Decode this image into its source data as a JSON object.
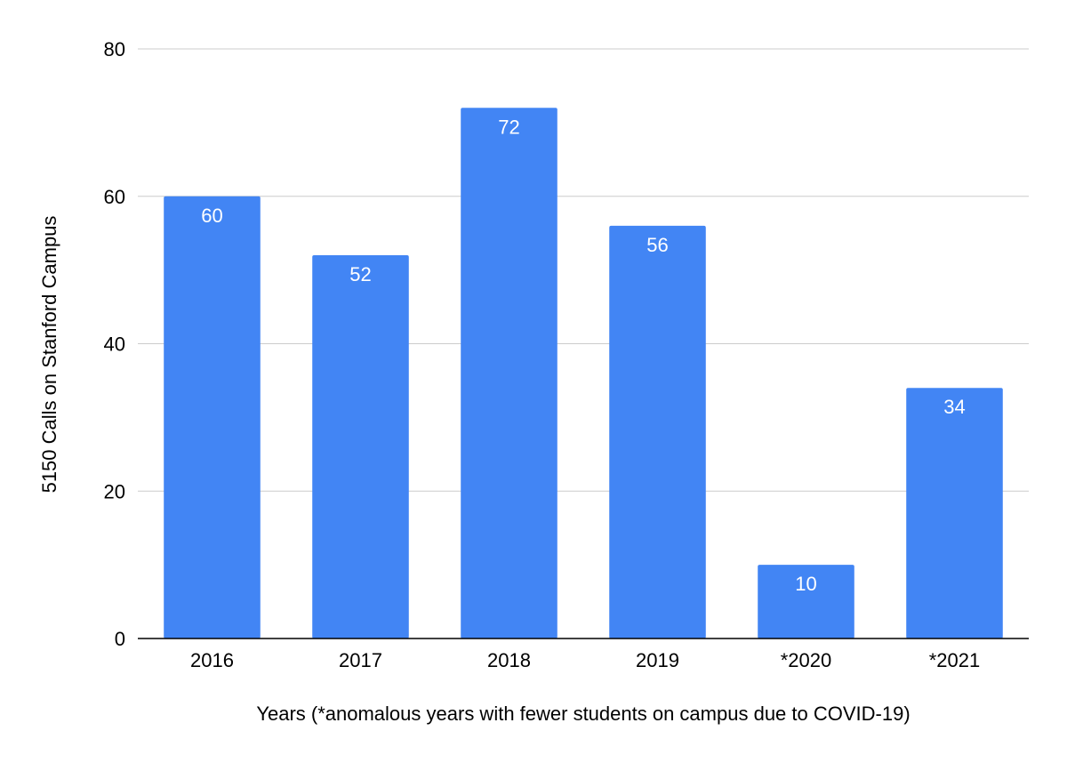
{
  "chart_data": {
    "type": "bar",
    "title": "",
    "xlabel": "Years (*anomalous years with fewer students on campus due to COVID-19)",
    "ylabel": "5150 Calls on Stanford Campus",
    "categories": [
      "2016",
      "2017",
      "2018",
      "2019",
      "*2020",
      "*2021"
    ],
    "series": [
      {
        "name": "5150 Calls on Stanford Campus",
        "values": [
          60,
          52,
          72,
          56,
          10,
          34
        ],
        "color": "#4285f4"
      }
    ],
    "ylim": [
      0,
      80
    ],
    "yticks": [
      0,
      20,
      40,
      60,
      80
    ],
    "ytick_labels": [
      "0",
      "20",
      "40",
      "60",
      "80"
    ],
    "data_labels": [
      "60",
      "52",
      "72",
      "56",
      "10",
      "34"
    ],
    "grid": true,
    "legend": "none"
  },
  "colors": {
    "bar": "#4285f4",
    "grid": "#cccccc",
    "axis": "#000000",
    "background": "#ffffff"
  }
}
